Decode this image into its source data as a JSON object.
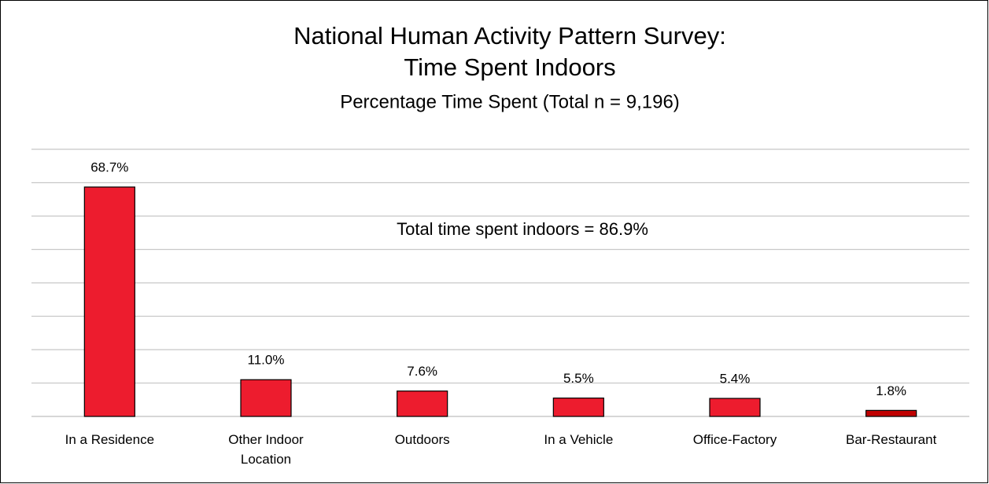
{
  "chart_data": {
    "type": "bar",
    "title": [
      "National Human Activity Pattern Survey:",
      "Time Spent Indoors"
    ],
    "subtitle": "Percentage Time Spent (Total n = 9,196)",
    "annotation": "Total time spent indoors = 86.9%",
    "categories": [
      "In a Residence",
      "Other Indoor Location",
      "Outdoors",
      "In a Vehicle",
      "Office-Factory",
      "Bar-Restaurant"
    ],
    "values": [
      68.7,
      11.0,
      7.6,
      5.5,
      5.4,
      1.8
    ],
    "value_labels": [
      "68.7%",
      "11.0%",
      "7.6%",
      "5.5%",
      "5.4%",
      "1.8%"
    ],
    "colors": [
      "#ed1c2e",
      "#ed1c2e",
      "#ed1c2e",
      "#ed1c2e",
      "#ed1c2e",
      "#c00000"
    ],
    "ylim": [
      0,
      80
    ],
    "yticks": [
      0,
      10,
      20,
      30,
      40,
      50,
      60,
      70,
      80
    ],
    "grid": true
  }
}
